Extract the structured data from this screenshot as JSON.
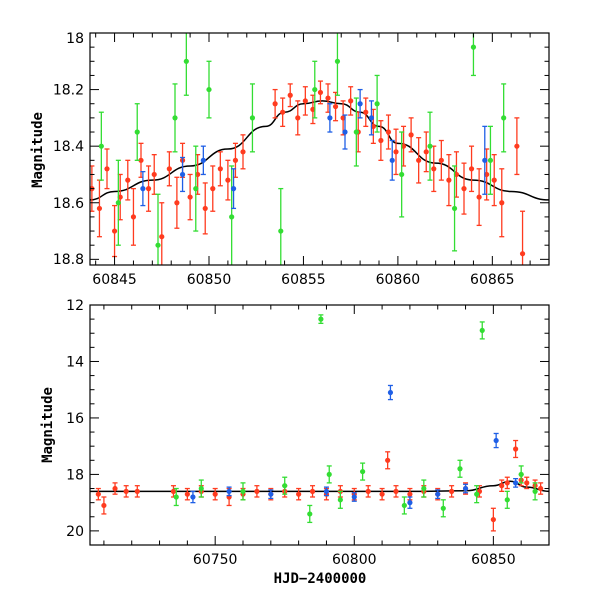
{
  "chart_data": [
    {
      "type": "scatter",
      "panel": "top",
      "xlabel": "",
      "ylabel": "Magnitude",
      "xlim": [
        60843.7,
        60868
      ],
      "ylim": [
        18.82,
        18.0
      ],
      "y_inverted": true,
      "xticks": [
        60845,
        60850,
        60855,
        60860,
        60865
      ],
      "yticks": [
        18,
        18.2,
        18.4,
        18.6,
        18.8
      ],
      "xtick_labels": [
        "60845",
        "60850",
        "60855",
        "60860",
        "60865"
      ],
      "ytick_labels": [
        "18",
        "18.2",
        "18.4",
        "18.6",
        "18.8"
      ],
      "model_curve": {
        "color": "#000000",
        "x": [
          60843.7,
          60845,
          60847,
          60849,
          60851,
          60853,
          60854,
          60855,
          60856,
          60857,
          60858,
          60859,
          60860,
          60862,
          60864,
          60866,
          60868
        ],
        "y": [
          18.59,
          18.56,
          18.52,
          18.47,
          18.41,
          18.33,
          18.28,
          18.25,
          18.24,
          18.25,
          18.28,
          18.33,
          18.39,
          18.46,
          18.52,
          18.56,
          18.59
        ]
      },
      "series": [
        {
          "color": "#ff3b1f",
          "x": [
            60843.8,
            60844.2,
            60844.6,
            60845.0,
            60845.3,
            60845.7,
            60846.0,
            60846.4,
            60846.8,
            60847.1,
            60847.5,
            60847.9,
            60848.3,
            60848.6,
            60849.0,
            60849.4,
            60849.8,
            60850.2,
            60850.6,
            60851.0,
            60851.4,
            60851.8,
            60853.5,
            60853.9,
            60854.3,
            60854.7,
            60855.1,
            60855.5,
            60855.9,
            60856.3,
            60856.7,
            60857.1,
            60857.5,
            60857.9,
            60858.3,
            60858.7,
            60859.1,
            60859.5,
            60859.9,
            60860.3,
            60860.7,
            60861.1,
            60861.5,
            60861.9,
            60862.3,
            60862.7,
            60863.1,
            60863.5,
            60863.9,
            60864.3,
            60864.7,
            60865.1,
            60865.5,
            60866.3,
            60866.6
          ],
          "y": [
            18.55,
            18.62,
            18.48,
            18.7,
            18.58,
            18.52,
            18.65,
            18.45,
            18.55,
            18.5,
            18.72,
            18.48,
            18.6,
            18.45,
            18.58,
            18.5,
            18.62,
            18.55,
            18.48,
            18.52,
            18.45,
            18.42,
            18.25,
            18.28,
            18.22,
            18.3,
            18.24,
            18.27,
            18.21,
            18.23,
            18.26,
            18.3,
            18.24,
            18.35,
            18.28,
            18.33,
            18.38,
            18.35,
            18.42,
            18.4,
            18.36,
            18.45,
            18.42,
            18.48,
            18.45,
            18.52,
            18.5,
            18.55,
            18.48,
            18.58,
            18.5,
            18.52,
            18.6,
            18.4,
            18.78
          ],
          "err": [
            0.08,
            0.1,
            0.07,
            0.09,
            0.08,
            0.07,
            0.1,
            0.06,
            0.08,
            0.07,
            0.12,
            0.06,
            0.09,
            0.06,
            0.08,
            0.07,
            0.09,
            0.08,
            0.06,
            0.07,
            0.06,
            0.06,
            0.05,
            0.05,
            0.04,
            0.06,
            0.05,
            0.05,
            0.04,
            0.05,
            0.05,
            0.06,
            0.05,
            0.07,
            0.05,
            0.06,
            0.07,
            0.06,
            0.08,
            0.07,
            0.06,
            0.08,
            0.07,
            0.08,
            0.07,
            0.09,
            0.08,
            0.09,
            0.08,
            0.1,
            0.09,
            0.09,
            0.12,
            0.1,
            0.15
          ]
        },
        {
          "color": "#33dd33",
          "x": [
            60844.3,
            60845.2,
            60846.2,
            60847.3,
            60848.2,
            60848.8,
            60849.3,
            60850.0,
            60851.2,
            60852.3,
            60853.8,
            60855.6,
            60856.8,
            60857.8,
            60858.9,
            60860.2,
            60861.7,
            60863.0,
            60864.0,
            60864.9,
            60865.6
          ],
          "y": [
            18.4,
            18.6,
            18.35,
            18.75,
            18.3,
            18.1,
            18.55,
            18.2,
            18.65,
            18.3,
            18.7,
            18.2,
            18.1,
            18.35,
            18.25,
            18.5,
            18.4,
            18.62,
            18.05,
            18.45,
            18.3
          ],
          "err": [
            0.12,
            0.15,
            0.1,
            0.18,
            0.12,
            0.12,
            0.15,
            0.1,
            0.18,
            0.12,
            0.15,
            0.1,
            0.12,
            0.12,
            0.1,
            0.15,
            0.12,
            0.15,
            0.1,
            0.12,
            0.12
          ]
        },
        {
          "color": "#1f5fe6",
          "x": [
            60846.5,
            60848.6,
            60849.7,
            60851.3,
            60856.4,
            60857.2,
            60858.0,
            60858.6,
            60859.7,
            60864.6
          ],
          "y": [
            18.55,
            18.5,
            18.45,
            18.55,
            18.3,
            18.35,
            18.25,
            18.3,
            18.45,
            18.45
          ],
          "err": [
            0.06,
            0.06,
            0.05,
            0.07,
            0.05,
            0.06,
            0.05,
            0.06,
            0.07,
            0.12
          ]
        }
      ]
    },
    {
      "type": "scatter",
      "panel": "bottom",
      "xlabel": "HJD−2400000",
      "ylabel": "Magnitude",
      "xlim": [
        60705,
        60870
      ],
      "ylim": [
        20.5,
        12.0
      ],
      "y_inverted": true,
      "xticks": [
        60750,
        60800,
        60850
      ],
      "yticks": [
        12,
        14,
        16,
        18,
        20
      ],
      "xtick_labels": [
        "60750",
        "60800",
        "60850"
      ],
      "ytick_labels": [
        "12",
        "14",
        "16",
        "18",
        "20"
      ],
      "model_curve": {
        "color": "#000000",
        "x": [
          60705,
          60720,
          60740,
          60760,
          60780,
          60800,
          60820,
          60840,
          60850,
          60856,
          60862,
          60870
        ],
        "y": [
          18.6,
          18.6,
          18.6,
          18.6,
          18.6,
          18.6,
          18.6,
          18.58,
          18.4,
          18.24,
          18.45,
          18.6
        ]
      },
      "series": [
        {
          "color": "#ff3b1f",
          "x": [
            60708,
            60710,
            60714,
            60718,
            60722,
            60735,
            60740,
            60745,
            60750,
            60755,
            60760,
            60765,
            60770,
            60775,
            60780,
            60785,
            60790,
            60795,
            60800,
            60805,
            60810,
            60812,
            60815,
            60820,
            60825,
            60830,
            60835,
            60840,
            60845,
            60850,
            60853,
            60855,
            60858,
            60860,
            60862,
            60865,
            60867
          ],
          "y": [
            18.7,
            19.1,
            18.5,
            18.6,
            18.6,
            18.6,
            18.7,
            18.6,
            18.7,
            18.8,
            18.7,
            18.6,
            18.7,
            18.6,
            18.7,
            18.6,
            18.7,
            18.6,
            18.7,
            18.6,
            18.7,
            17.5,
            18.6,
            18.7,
            18.6,
            18.7,
            18.6,
            18.5,
            18.6,
            19.6,
            18.4,
            18.3,
            17.1,
            18.2,
            18.3,
            18.4,
            18.5
          ],
          "err": [
            0.2,
            0.3,
            0.2,
            0.2,
            0.2,
            0.2,
            0.2,
            0.2,
            0.2,
            0.3,
            0.2,
            0.2,
            0.2,
            0.2,
            0.2,
            0.2,
            0.2,
            0.2,
            0.2,
            0.2,
            0.2,
            0.3,
            0.2,
            0.2,
            0.2,
            0.2,
            0.2,
            0.2,
            0.2,
            0.4,
            0.2,
            0.2,
            0.3,
            0.2,
            0.2,
            0.2,
            0.2
          ]
        },
        {
          "color": "#33dd33",
          "x": [
            60736,
            60745,
            60760,
            60775,
            60784,
            60788,
            60791,
            60795,
            60803,
            60818,
            60825,
            60832,
            60838,
            60844,
            60846,
            60855,
            60860,
            60865
          ],
          "y": [
            18.8,
            18.5,
            18.6,
            18.4,
            19.4,
            12.5,
            18.0,
            18.9,
            17.9,
            19.1,
            18.5,
            19.2,
            17.8,
            18.7,
            12.9,
            18.9,
            18.0,
            18.6
          ],
          "err": [
            0.3,
            0.3,
            0.3,
            0.3,
            0.3,
            0.15,
            0.3,
            0.3,
            0.3,
            0.3,
            0.3,
            0.3,
            0.3,
            0.3,
            0.3,
            0.3,
            0.3,
            0.3
          ]
        },
        {
          "color": "#1f5fe6",
          "x": [
            60742,
            60755,
            60770,
            60790,
            60800,
            60813,
            60820,
            60830,
            60840,
            60851,
            60858
          ],
          "y": [
            18.8,
            18.6,
            18.7,
            18.6,
            18.8,
            15.1,
            19.0,
            18.7,
            18.5,
            16.8,
            18.3
          ],
          "err": [
            0.2,
            0.15,
            0.15,
            0.15,
            0.15,
            0.25,
            0.2,
            0.15,
            0.15,
            0.25,
            0.15
          ]
        }
      ]
    }
  ]
}
